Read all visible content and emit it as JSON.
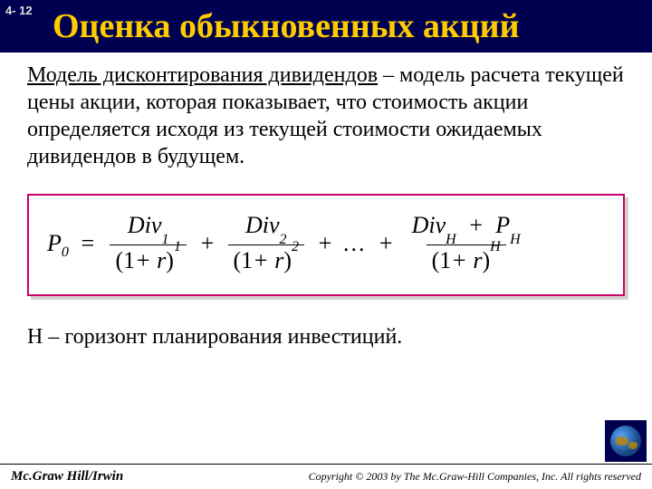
{
  "page_number": "4- 12",
  "title": "Оценка обыкновенных акций",
  "term": "Модель дисконтирования дивидендов",
  "definition_rest": " – модель расчета текущей цены акции, которая показывает, что стоимость акции определяется исходя из текущей стоимости ожидаемых дивидендов в будущем.",
  "formula": {
    "lhs_var": "P",
    "lhs_sub": "0",
    "eq": "=",
    "terms": [
      {
        "num_var": "Div",
        "num_sub": "1",
        "den_base": "(1",
        "den_plus": "+",
        "den_var": "r",
        "den_close": ")",
        "den_sup": "1"
      },
      {
        "num_var": "Div",
        "num_sub": "2",
        "den_base": "(1",
        "den_plus": "+",
        "den_var": "r",
        "den_close": ")",
        "den_sup": "2"
      }
    ],
    "plus": "+",
    "dots": "...",
    "last": {
      "num_var1": "Div",
      "num_sub1": "H",
      "num_plus": "+",
      "num_var2": "P",
      "num_sub2": "H",
      "den_base": "(1",
      "den_plus": "+",
      "den_var": "r",
      "den_close": ")",
      "den_sup": "H"
    }
  },
  "horizon_text": "H – горизонт планирования инвестиций.",
  "publisher": "Mc.Graw Hill/Irwin",
  "copyright": "Copyright © 2003 by The Mc.Graw-Hill Companies, Inc. All rights reserved",
  "colors": {
    "header_bg": "#000050",
    "title_color": "#ffcc00",
    "box_border": "#cc0066",
    "text": "#000000",
    "bg": "#ffffff"
  }
}
